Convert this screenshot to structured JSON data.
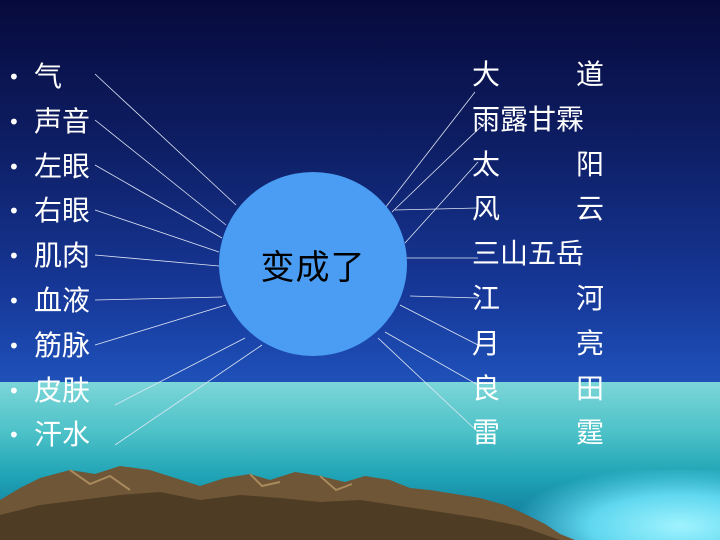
{
  "center": "变成了",
  "left_items": [
    "气",
    "声音",
    "左眼",
    "右眼",
    "肌肉",
    "血液",
    "筋脉",
    "皮肤",
    "汗水"
  ],
  "bullet": "•",
  "right_items": [
    {
      "a": "大",
      "b": "道"
    },
    {
      "a": "雨露甘霖",
      "b": ""
    },
    {
      "a": "太",
      "b": "阳"
    },
    {
      "a": "风",
      "b": "云"
    },
    {
      "a": "三山五岳",
      "b": ""
    },
    {
      "a": "江",
      "b": "河"
    },
    {
      "a": "月",
      "b": "亮"
    },
    {
      "a": "良",
      "b": "田"
    },
    {
      "a": "雷",
      "b": "霆"
    }
  ]
}
